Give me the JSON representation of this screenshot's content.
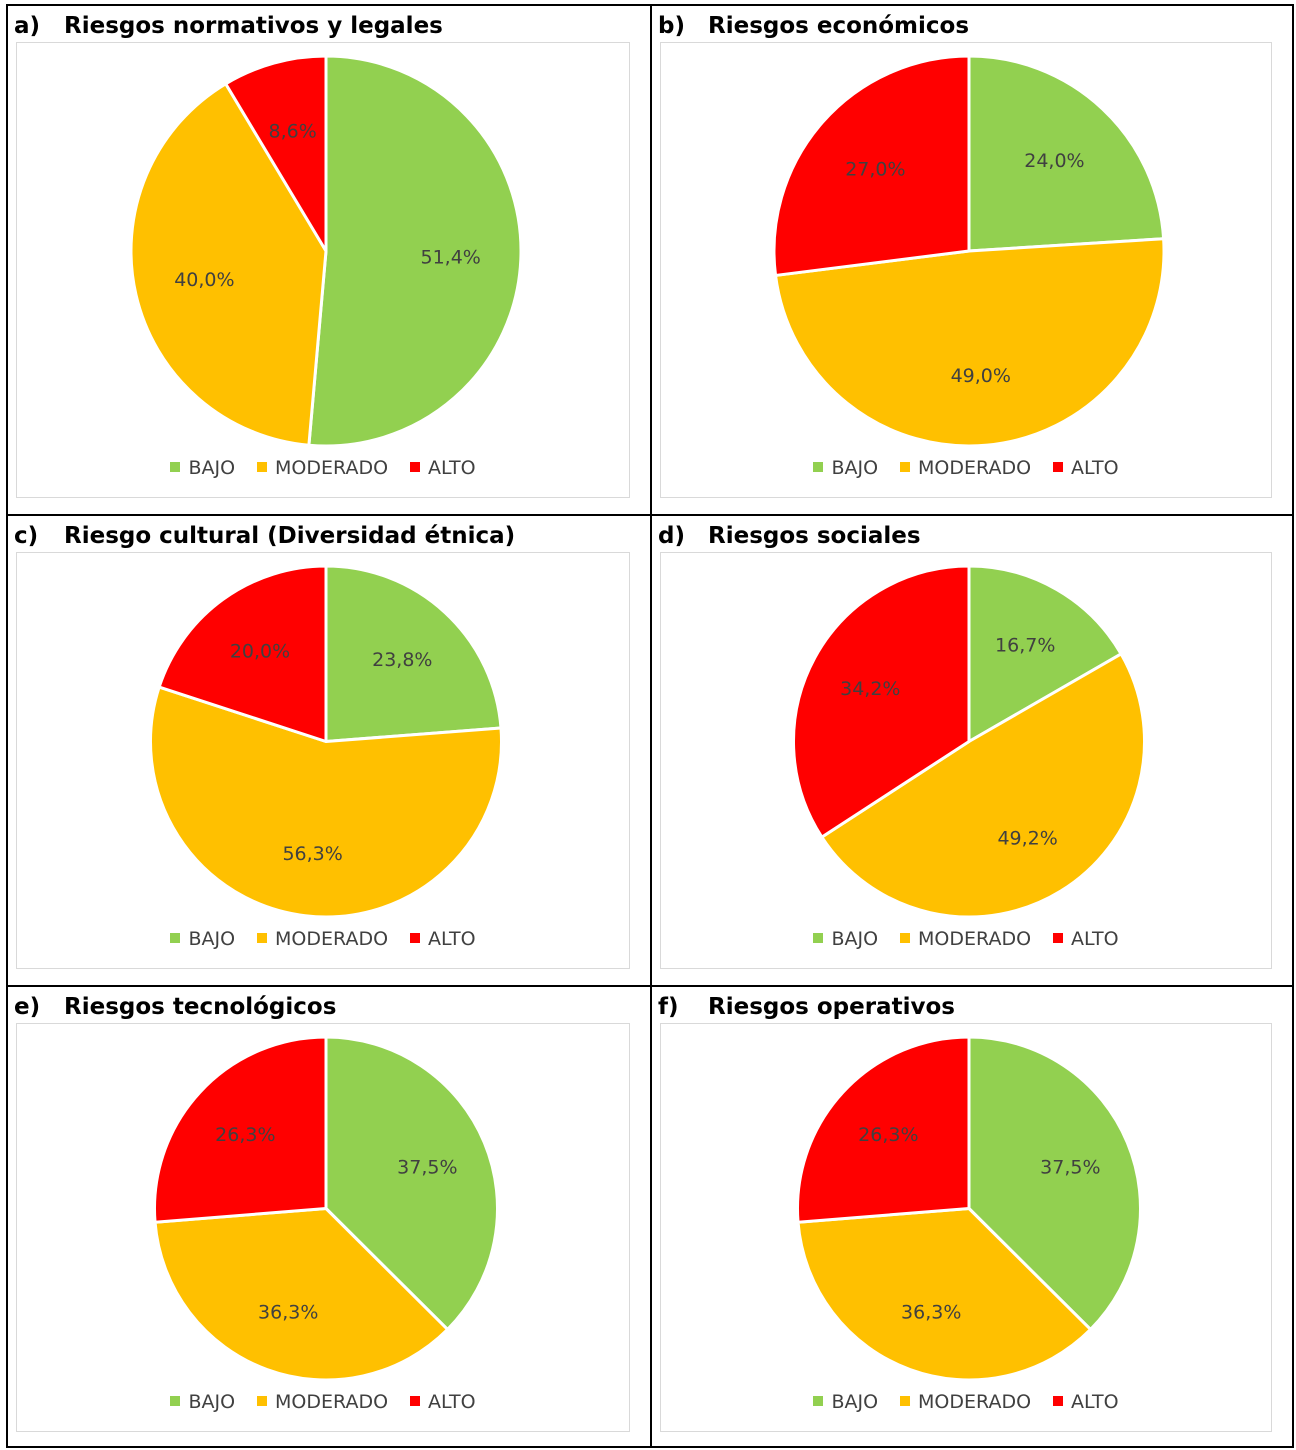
{
  "colors": {
    "BAJO": "#92d050",
    "MODERADO": "#ffc000",
    "ALTO": "#ff0000"
  },
  "chart_data": [
    {
      "type": "pie",
      "letter": "a)",
      "title": "Riesgos normativos y legales",
      "categories": [
        "BAJO",
        "MODERADO",
        "ALTO"
      ],
      "values": [
        51.4,
        40.0,
        8.6
      ],
      "labels": [
        "51,4%",
        "40,0%",
        "8,6%"
      ],
      "legend": [
        "BAJO",
        "MODERADO",
        "ALTO"
      ]
    },
    {
      "type": "pie",
      "letter": "b)",
      "title": "Riesgos económicos",
      "categories": [
        "BAJO",
        "MODERADO",
        "ALTO"
      ],
      "values": [
        24.0,
        49.0,
        27.0
      ],
      "labels": [
        "24,0%",
        "49,0%",
        "27,0%"
      ],
      "legend": [
        "BAJO",
        "MODERADO",
        "ALTO"
      ]
    },
    {
      "type": "pie",
      "letter": "c)",
      "title": "Riesgo cultural (Diversidad étnica)",
      "categories": [
        "BAJO",
        "MODERADO",
        "ALTO"
      ],
      "values": [
        23.8,
        56.3,
        20.0
      ],
      "labels": [
        "23,8%",
        "56,3%",
        "20,0%"
      ],
      "legend": [
        "BAJO",
        "MODERADO",
        "ALTO"
      ]
    },
    {
      "type": "pie",
      "letter": "d)",
      "title": "Riesgos sociales",
      "categories": [
        "BAJO",
        "MODERADO",
        "ALTO"
      ],
      "values": [
        16.7,
        49.2,
        34.2
      ],
      "labels": [
        "16,7%",
        "49,2%",
        "34,2%"
      ],
      "legend": [
        "BAJO",
        "MODERADO",
        "ALTO"
      ]
    },
    {
      "type": "pie",
      "letter": "e)",
      "title": "Riesgos tecnológicos",
      "categories": [
        "BAJO",
        "MODERADO",
        "ALTO"
      ],
      "values": [
        37.5,
        36.3,
        26.3
      ],
      "labels": [
        "37,5%",
        "36,3%",
        "26,3%"
      ],
      "legend": [
        "BAJO",
        "MODERADO",
        "ALTO"
      ]
    },
    {
      "type": "pie",
      "letter": "f)",
      "title": "Riesgos operativos",
      "categories": [
        "BAJO",
        "MODERADO",
        "ALTO"
      ],
      "values": [
        37.5,
        36.3,
        26.3
      ],
      "labels": [
        "37,5%",
        "36,3%",
        "26,3%"
      ],
      "legend": [
        "BAJO",
        "MODERADO",
        "ALTO"
      ]
    }
  ]
}
